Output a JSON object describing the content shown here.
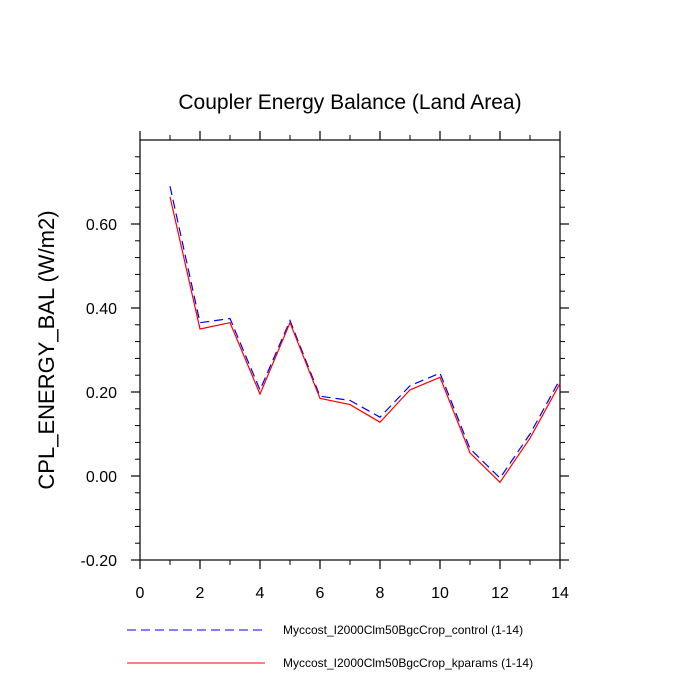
{
  "chart_data": {
    "type": "line",
    "title": "Coupler Energy Balance (Land Area)",
    "xlabel": "",
    "ylabel": "CPL_ENERGY_BAL  (W/m2)",
    "xlim": [
      0,
      14
    ],
    "ylim": [
      -0.2,
      0.8
    ],
    "xticks": [
      0,
      2,
      4,
      6,
      8,
      10,
      12,
      14
    ],
    "xtick_labels": [
      "0",
      "2",
      "4",
      "6",
      "8",
      "10",
      "12",
      "14"
    ],
    "yticks": [
      -0.2,
      0.0,
      0.2,
      0.4,
      0.6
    ],
    "ytick_labels": [
      "-0.20",
      "0.00",
      "0.20",
      "0.40",
      "0.60"
    ],
    "grid": false,
    "legend_position": "bottom",
    "x": [
      1,
      2,
      3,
      4,
      5,
      6,
      7,
      8,
      9,
      10,
      11,
      12,
      13,
      14
    ],
    "series": [
      {
        "name": "Myccost_I2000Clm50BgcCrop_control (1-14)",
        "color": "#0000ff",
        "style": "dashed",
        "values": [
          0.69,
          0.365,
          0.375,
          0.205,
          0.37,
          0.19,
          0.18,
          0.14,
          0.215,
          0.245,
          0.065,
          -0.005,
          0.1,
          0.23
        ]
      },
      {
        "name": "Myccost_I2000Clm50BgcCrop_kparams (1-14)",
        "color": "#ff0000",
        "style": "solid",
        "values": [
          0.665,
          0.35,
          0.365,
          0.195,
          0.365,
          0.185,
          0.17,
          0.128,
          0.205,
          0.235,
          0.055,
          -0.015,
          0.09,
          0.22
        ]
      }
    ]
  }
}
